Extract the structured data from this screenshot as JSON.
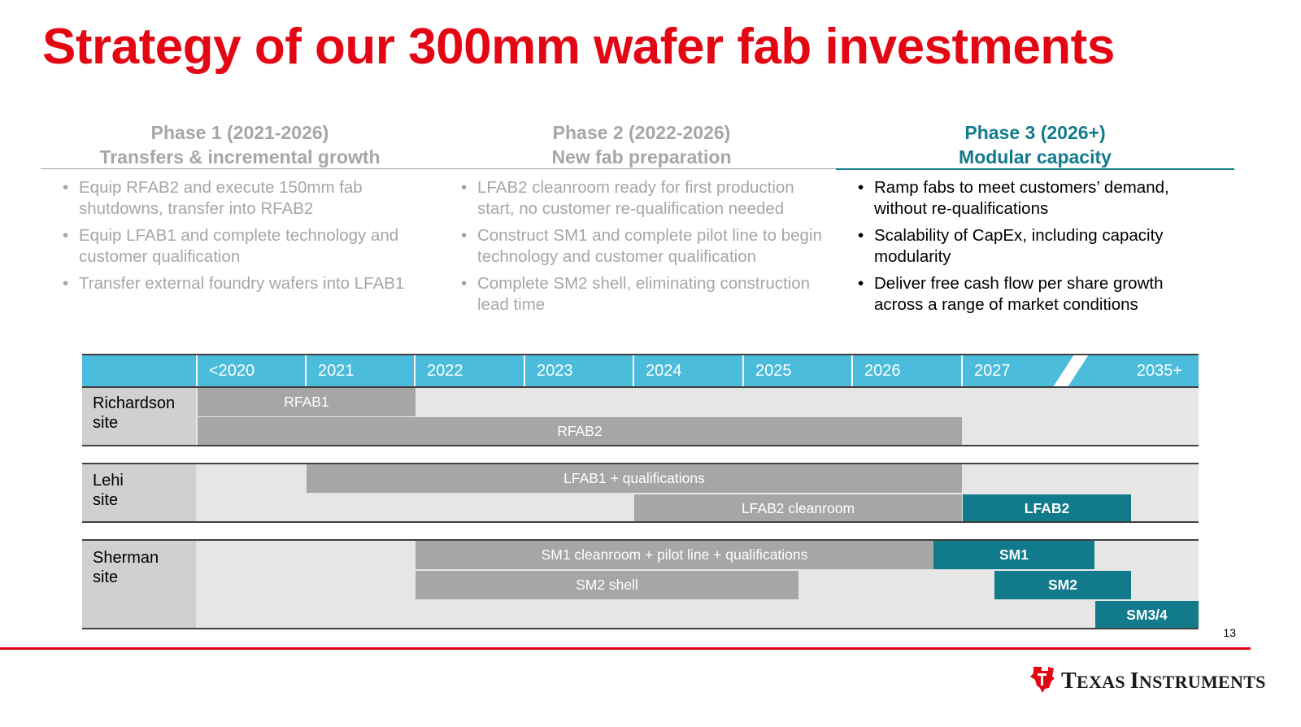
{
  "title": "Strategy of our 300mm wafer fab investments",
  "phases": [
    {
      "heading_line1": "Phase 1 (2021-2026)",
      "heading_line2": "Transfers & incremental growth",
      "bullets": [
        "Equip RFAB2 and execute 150mm fab shutdowns, transfer into RFAB2",
        "Equip LFAB1 and complete technology and customer qualification",
        "Transfer external foundry wafers into LFAB1"
      ]
    },
    {
      "heading_line1": "Phase 2 (2022-2026)",
      "heading_line2": "New fab preparation",
      "bullets": [
        "LFAB2 cleanroom ready for first production start, no customer re-qualification needed",
        "Construct SM1 and complete pilot line to begin technology and customer qualification",
        "Complete SM2 shell, eliminating construction lead time"
      ]
    },
    {
      "heading_line1": "Phase 3 (2026+)",
      "heading_line2": "Modular capacity",
      "bullets": [
        "Ramp fabs to meet customers’ demand, without re-qualifications",
        "Scalability of CapEx, including capacity modularity",
        "Deliver free cash flow per share growth across a range of market conditions"
      ]
    }
  ],
  "timeline": {
    "years": [
      "<2020",
      "2021",
      "2022",
      "2023",
      "2024",
      "2025",
      "2026",
      "2027",
      "2035+"
    ],
    "sites": [
      {
        "label_line1": "Richardson",
        "label_line2": "site"
      },
      {
        "label_line1": "Lehi",
        "label_line2": "site"
      },
      {
        "label_line1": "Sherman",
        "label_line2": "site"
      }
    ],
    "bars": [
      {
        "label": "RFAB1",
        "style": "gray"
      },
      {
        "label": "RFAB2",
        "style": "gray"
      },
      {
        "label": "LFAB1 + qualifications",
        "style": "gray"
      },
      {
        "label": "LFAB2 cleanroom",
        "style": "gray"
      },
      {
        "label": "LFAB2",
        "style": "teal"
      },
      {
        "label": "SM1 cleanroom + pilot line + qualifications",
        "style": "gray"
      },
      {
        "label": "SM1",
        "style": "teal"
      },
      {
        "label": "SM2 shell",
        "style": "gray"
      },
      {
        "label": "SM2",
        "style": "teal"
      },
      {
        "label": "SM3/4",
        "style": "teal"
      }
    ]
  },
  "page_number": "13",
  "footer": {
    "logo_word1_cap": "T",
    "logo_word1_rest": "EXAS",
    "logo_word2_cap": "I",
    "logo_word2_rest": "NSTRUMENTS"
  },
  "colors": {
    "brand_red": "#e30613",
    "teal": "#117a8b",
    "year_bar": "#4bbcdb",
    "bar_gray": "#a6a6a6"
  }
}
